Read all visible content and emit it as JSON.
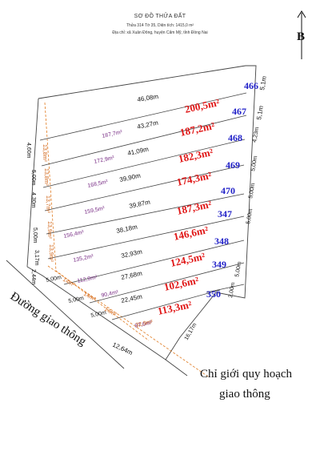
{
  "header": {
    "title": "SƠ ĐỒ THỬA ĐẤT",
    "subtitle": "Thửa 314 Tờ 35, Diện tích: 1415,0 m²",
    "address": "Địa chỉ: xã Xuân Đông, huyện Cẩm Mỹ, tỉnh Đồng Nai"
  },
  "north_label": "B",
  "lots": [
    {
      "number": "466",
      "area": "200,5m²",
      "inner_area": "187,7m²",
      "length": "43,27m",
      "top_length": "46,08m"
    },
    {
      "number": "467",
      "area": "187,2m²",
      "inner_area": "172,9m²",
      "length": "41,09m"
    },
    {
      "number": "468",
      "area": "182,3m²",
      "inner_area": "168,5m²",
      "length": "39,90m"
    },
    {
      "number": "469",
      "area": "174,3m²",
      "inner_area": "159,5m²",
      "length": "39,87m"
    },
    {
      "number": "470",
      "area": "187,3m²",
      "inner_area": "156,4m²",
      "length": "38,18m"
    },
    {
      "number": "347",
      "area": "146,6m²",
      "inner_area": "135,2m²",
      "length": "32,93m"
    },
    {
      "number": "348",
      "area": "124,5m²",
      "inner_area": "112,8m²",
      "length": "27,68m"
    },
    {
      "number": "349",
      "area": "102,6m²",
      "inner_area": "90,4m²",
      "length": "22,45m"
    },
    {
      "number": "350",
      "area": "113,3m²",
      "inner_area": "87,6m²",
      "length": "12,64m"
    }
  ],
  "left_widths": [
    "4,60m",
    "5,00m",
    "4,30m",
    "5,00m",
    "3,17m",
    "2,44m"
  ],
  "corridor_areas": [
    "13,8m²",
    "13,8m²",
    "13,7m²",
    "13,9m²",
    "13,9m²",
    "14m²",
    "14m²",
    "14m²",
    "32,9m²"
  ],
  "right_widths": [
    "5,1m",
    "5,1m",
    "4,23m",
    "5,00m",
    "5,00m",
    "5,00m",
    "5,00m",
    "2,00m"
  ],
  "bottom_widths": [
    "5,00m",
    "5,00m",
    "5,00m"
  ],
  "bottom_right_length": "16,17m",
  "road_label": "Đường giao thông",
  "plan_label_line1": "Chỉ giới quy hoạch",
  "plan_label_line2": "giao thông"
}
